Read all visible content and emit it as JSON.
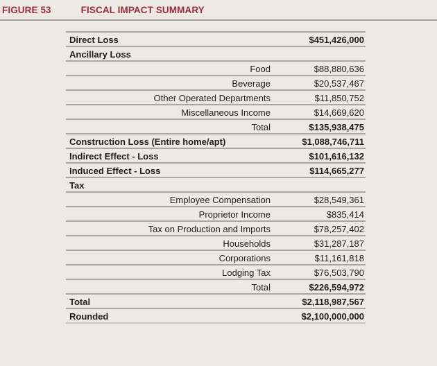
{
  "page": {
    "background_color": "#ece9e6",
    "text_color": "#1f1e1d",
    "grid_line_color": "#a9a5a2"
  },
  "header": {
    "figure_label": "FIGURE 53",
    "title": "FISCAL IMPACT SUMMARY",
    "accent_color": "#9b2d39"
  },
  "table": {
    "rows": [
      {
        "label": "Direct Loss",
        "value": "$451,426,000",
        "style": "section",
        "value_bold": true
      },
      {
        "label": "Ancillary Loss",
        "value": "",
        "style": "section",
        "value_bold": false
      },
      {
        "label": "Food",
        "value": "$88,880,636",
        "style": "item",
        "value_bold": false
      },
      {
        "label": "Beverage",
        "value": "$20,537,467",
        "style": "item",
        "value_bold": false
      },
      {
        "label": "Other Operated Departments",
        "value": "$11,850,752",
        "style": "item",
        "value_bold": false
      },
      {
        "label": "Miscellaneous Income",
        "value": "$14,669,620",
        "style": "item",
        "value_bold": false
      },
      {
        "label": "Total",
        "value": "$135,938,475",
        "style": "item",
        "value_bold": true
      },
      {
        "label": "Construction Loss (Entire home/apt)",
        "value": "$1,088,746,711",
        "style": "section",
        "value_bold": true
      },
      {
        "label": "Indirect Effect - Loss",
        "value": "$101,616,132",
        "style": "section",
        "value_bold": true
      },
      {
        "label": "Induced Effect - Loss",
        "value": "$114,665,277",
        "style": "section",
        "value_bold": true
      },
      {
        "label": "Tax",
        "value": "",
        "style": "section",
        "value_bold": false
      },
      {
        "label": "Employee Compensation",
        "value": "$28,549,361",
        "style": "item",
        "value_bold": false
      },
      {
        "label": "Proprietor Income",
        "value": "$835,414",
        "style": "item",
        "value_bold": false
      },
      {
        "label": "Tax on Production and Imports",
        "value": "$78,257,402",
        "style": "item",
        "value_bold": false
      },
      {
        "label": "Households",
        "value": "$31,287,187",
        "style": "item",
        "value_bold": false
      },
      {
        "label": "Corporations",
        "value": "$11,161,818",
        "style": "item",
        "value_bold": false
      },
      {
        "label": "Lodging Tax",
        "value": "$76,503,790",
        "style": "item",
        "value_bold": false
      },
      {
        "label": "Total",
        "value": "$226,594,972",
        "style": "item",
        "value_bold": true
      },
      {
        "label": "Total",
        "value": "$2,118,987,567",
        "style": "section",
        "value_bold": true
      },
      {
        "label": "Rounded",
        "value": "$2,100,000,000",
        "style": "section",
        "value_bold": true
      }
    ]
  }
}
